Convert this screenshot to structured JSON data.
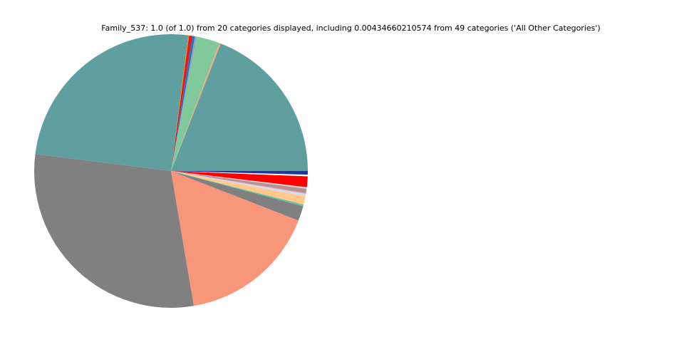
{
  "chart_data": {
    "type": "pie",
    "title": "Family_537: 1.0 (of 1.0) from 20 categories displayed, including 0.00434660210574 from 49 categories ('All Other Categories')",
    "start_angle_deg": 0,
    "direction": "counterclockwise",
    "legend": "none",
    "slices": [
      {
        "value": 0.195,
        "color": "#5f9f9f"
      },
      {
        "value": 0.002,
        "color": "#f4a582"
      },
      {
        "value": 0.028,
        "color": "#7fc99a"
      },
      {
        "value": 0.002,
        "color": "#9e9ac8"
      },
      {
        "value": 0.003,
        "color": "#1f78b4"
      },
      {
        "value": 0.004,
        "color": "#e31a1c"
      },
      {
        "value": 0.001,
        "color": "#ff7f00"
      },
      {
        "value": 0.256,
        "color": "#5f9f9f"
      },
      {
        "value": 0.303,
        "color": "#808080"
      },
      {
        "value": 0.168,
        "color": "#f79679"
      },
      {
        "value": 0.018,
        "color": "#808080"
      },
      {
        "value": 0.002,
        "color": "#66c2a5"
      },
      {
        "value": 0.01,
        "color": "#ffc98b"
      },
      {
        "value": 0.003,
        "color": "#d9d9e8"
      },
      {
        "value": 0.001,
        "color": "#c2a5cf"
      },
      {
        "value": 0.005,
        "color": "#bc8f8f"
      },
      {
        "value": 0.002,
        "color": "#d3d3d3"
      },
      {
        "value": 0.013,
        "color": "#ff0000"
      },
      {
        "value": 0.002,
        "color": "#ffffff"
      },
      {
        "value": 0.0043,
        "color": "#1f3a93"
      }
    ]
  }
}
